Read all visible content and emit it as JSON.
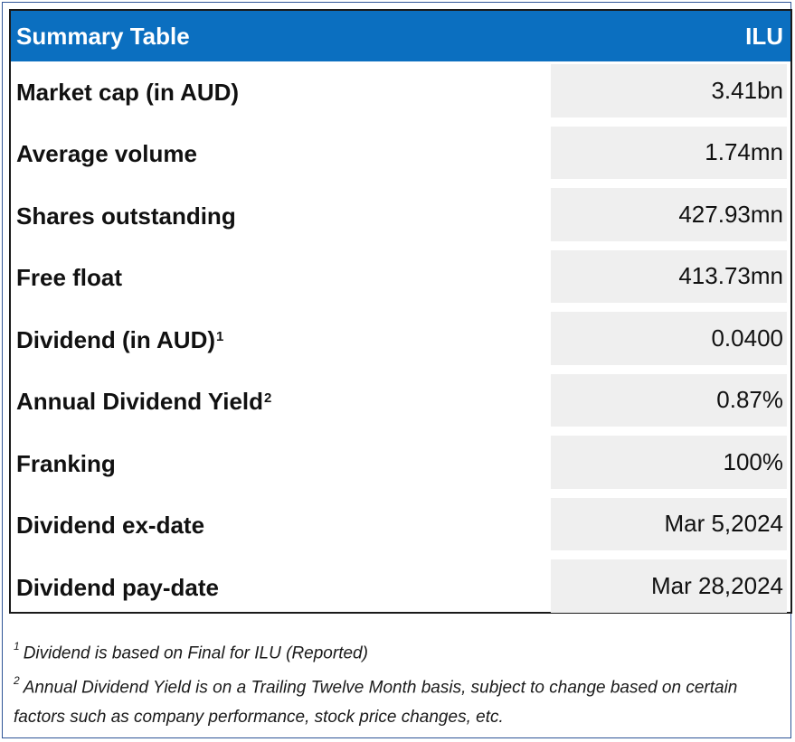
{
  "header": {
    "title": "Summary Table",
    "ticker": "ILU"
  },
  "rows": [
    {
      "label": "Market cap (in AUD)",
      "sup": "",
      "value": "3.41bn"
    },
    {
      "label": "Average volume",
      "sup": "",
      "value": "1.74mn"
    },
    {
      "label": "Shares outstanding",
      "sup": "",
      "value": "427.93mn"
    },
    {
      "label": "Free float",
      "sup": "",
      "value": "413.73mn"
    },
    {
      "label": "Dividend (in AUD)",
      "sup": "1",
      "value": "0.0400"
    },
    {
      "label": "Annual Dividend Yield",
      "sup": "2",
      "value": "0.87%"
    },
    {
      "label": "Franking",
      "sup": "",
      "value": "100%"
    },
    {
      "label": "Dividend ex-date",
      "sup": "",
      "value": "Mar 5,2024"
    },
    {
      "label": "Dividend pay-date",
      "sup": "",
      "value": "Mar 28,2024"
    }
  ],
  "notes": [
    {
      "marker": "1",
      "text": "Dividend is based on Final for ILU (Reported)"
    },
    {
      "marker": "2",
      "text": "Annual Dividend Yield is on a Trailing Twelve Month basis, subject to change based on certain factors such as company performance, stock price changes, etc."
    }
  ]
}
